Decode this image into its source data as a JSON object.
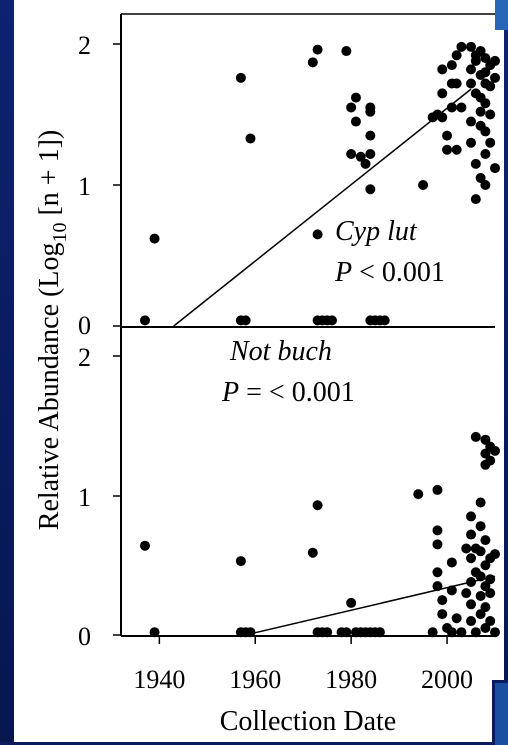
{
  "chart_data": [
    {
      "type": "scatter",
      "panel": "top",
      "annotation_species": "Cyp lut",
      "annotation_p_var": "P",
      "annotation_p_text": " < 0.001",
      "y_ticks": [
        "0",
        "1",
        "2"
      ],
      "ylim": [
        0,
        2
      ],
      "xlim": [
        1932,
        2010
      ],
      "trend": [
        [
          1943,
          0
        ],
        [
          2005,
          1.68
        ]
      ],
      "points": [
        [
          1937,
          0.04
        ],
        [
          1939,
          0.62
        ],
        [
          1957,
          0.04
        ],
        [
          1958,
          0.04
        ],
        [
          1957,
          1.76
        ],
        [
          1959,
          1.33
        ],
        [
          1973,
          0.04
        ],
        [
          1974,
          0.04
        ],
        [
          1975,
          0.04
        ],
        [
          1976,
          0.04
        ],
        [
          1972,
          1.87
        ],
        [
          1973,
          1.96
        ],
        [
          1973,
          0.65
        ],
        [
          1979,
          1.95
        ],
        [
          1980,
          1.22
        ],
        [
          1981,
          1.62
        ],
        [
          1982,
          1.2
        ],
        [
          1983,
          1.15
        ],
        [
          1980,
          1.55
        ],
        [
          1984,
          1.52
        ],
        [
          1984,
          1.35
        ],
        [
          1984,
          1.22
        ],
        [
          1984,
          0.97
        ],
        [
          1984,
          0.04
        ],
        [
          1985,
          0.04
        ],
        [
          1986,
          0.04
        ],
        [
          1987,
          0.04
        ],
        [
          1984,
          1.55
        ],
        [
          1981,
          1.45
        ],
        [
          1995,
          1.0
        ],
        [
          1997,
          1.48
        ],
        [
          1998,
          1.5
        ],
        [
          1999,
          1.65
        ],
        [
          1999,
          1.82
        ],
        [
          1999,
          1.48
        ],
        [
          2000,
          1.35
        ],
        [
          2000,
          1.25
        ],
        [
          2001,
          1.55
        ],
        [
          2001,
          1.72
        ],
        [
          2001,
          1.85
        ],
        [
          2002,
          1.72
        ],
        [
          2002,
          1.92
        ],
        [
          2002,
          1.25
        ],
        [
          2003,
          1.55
        ],
        [
          2003,
          1.98
        ],
        [
          2005,
          1.98
        ],
        [
          2005,
          1.82
        ],
        [
          2005,
          1.72
        ],
        [
          2005,
          1.45
        ],
        [
          2005,
          1.3
        ],
        [
          2006,
          1.92
        ],
        [
          2006,
          1.88
        ],
        [
          2006,
          1.65
        ],
        [
          2006,
          1.15
        ],
        [
          2006,
          0.9
        ],
        [
          2007,
          1.95
        ],
        [
          2007,
          1.78
        ],
        [
          2007,
          1.62
        ],
        [
          2007,
          1.52
        ],
        [
          2007,
          1.42
        ],
        [
          2008,
          1.9
        ],
        [
          2008,
          1.8
        ],
        [
          2008,
          1.72
        ],
        [
          2008,
          1.58
        ],
        [
          2008,
          1.38
        ],
        [
          2008,
          1.22
        ],
        [
          2009,
          1.85
        ],
        [
          2009,
          1.7
        ],
        [
          2009,
          1.5
        ],
        [
          2009,
          1.3
        ],
        [
          2010,
          1.88
        ],
        [
          2010,
          1.76
        ],
        [
          2010,
          1.12
        ],
        [
          2007,
          1.05
        ],
        [
          2008,
          1.0
        ]
      ]
    },
    {
      "type": "scatter",
      "panel": "bottom",
      "annotation_species": "Not buch",
      "annotation_p_var": "P",
      "annotation_p_text": " = < 0.001",
      "y_ticks": [
        "0",
        "1",
        "2"
      ],
      "ylim": [
        0,
        2
      ],
      "xlim": [
        1932,
        2010
      ],
      "trend": [
        [
          1958,
          0
        ],
        [
          2010,
          0.42
        ]
      ],
      "points": [
        [
          1937,
          0.64
        ],
        [
          1939,
          0.02
        ],
        [
          1957,
          0.02
        ],
        [
          1958,
          0.02
        ],
        [
          1957,
          0.53
        ],
        [
          1959,
          0.02
        ],
        [
          1972,
          0.59
        ],
        [
          1973,
          0.93
        ],
        [
          1973,
          0.02
        ],
        [
          1974,
          0.02
        ],
        [
          1975,
          0.02
        ],
        [
          1978,
          0.02
        ],
        [
          1979,
          0.02
        ],
        [
          1980,
          0.23
        ],
        [
          1981,
          0.02
        ],
        [
          1982,
          0.02
        ],
        [
          1983,
          0.02
        ],
        [
          1984,
          0.02
        ],
        [
          1985,
          0.02
        ],
        [
          1986,
          0.02
        ],
        [
          1994,
          1.01
        ],
        [
          1997,
          0.02
        ],
        [
          1998,
          1.04
        ],
        [
          1998,
          0.75
        ],
        [
          1998,
          0.65
        ],
        [
          1998,
          0.45
        ],
        [
          1998,
          0.35
        ],
        [
          1999,
          0.25
        ],
        [
          1999,
          0.15
        ],
        [
          2000,
          0.05
        ],
        [
          2001,
          0.02
        ],
        [
          2002,
          0.12
        ],
        [
          2001,
          0.52
        ],
        [
          2001,
          0.32
        ],
        [
          2003,
          0.02
        ],
        [
          2005,
          0.85
        ],
        [
          2005,
          0.72
        ],
        [
          2005,
          0.55
        ],
        [
          2005,
          0.38
        ],
        [
          2005,
          0.22
        ],
        [
          2005,
          0.1
        ],
        [
          2006,
          1.42
        ],
        [
          2006,
          0.62
        ],
        [
          2006,
          0.45
        ],
        [
          2006,
          0.02
        ],
        [
          2007,
          0.95
        ],
        [
          2007,
          0.78
        ],
        [
          2007,
          0.6
        ],
        [
          2007,
          0.42
        ],
        [
          2007,
          0.28
        ],
        [
          2007,
          0.15
        ],
        [
          2008,
          1.4
        ],
        [
          2008,
          1.3
        ],
        [
          2008,
          1.22
        ],
        [
          2008,
          0.68
        ],
        [
          2008,
          0.5
        ],
        [
          2008,
          0.35
        ],
        [
          2008,
          0.2
        ],
        [
          2008,
          0.05
        ],
        [
          2009,
          1.35
        ],
        [
          2009,
          1.25
        ],
        [
          2009,
          0.55
        ],
        [
          2009,
          0.4
        ],
        [
          2009,
          0.3
        ],
        [
          2009,
          0.1
        ],
        [
          2010,
          1.32
        ],
        [
          2010,
          0.58
        ],
        [
          2010,
          0.02
        ],
        [
          2004,
          0.62
        ],
        [
          2004,
          0.3
        ]
      ]
    }
  ],
  "x_ticks": [
    "1940",
    "1960",
    "1980",
    "2000"
  ],
  "x_tick_values": [
    1940,
    1960,
    1980,
    2000
  ],
  "xlabel": "Collection Date",
  "ylabel_pre": "Relative Abundance (Log",
  "ylabel_sub": "10",
  "ylabel_post": " [n + 1])",
  "colors": {
    "background": "#0a1a5c",
    "panel": "#ffffff",
    "ink": "#000000",
    "accent": "#2a66b8"
  }
}
